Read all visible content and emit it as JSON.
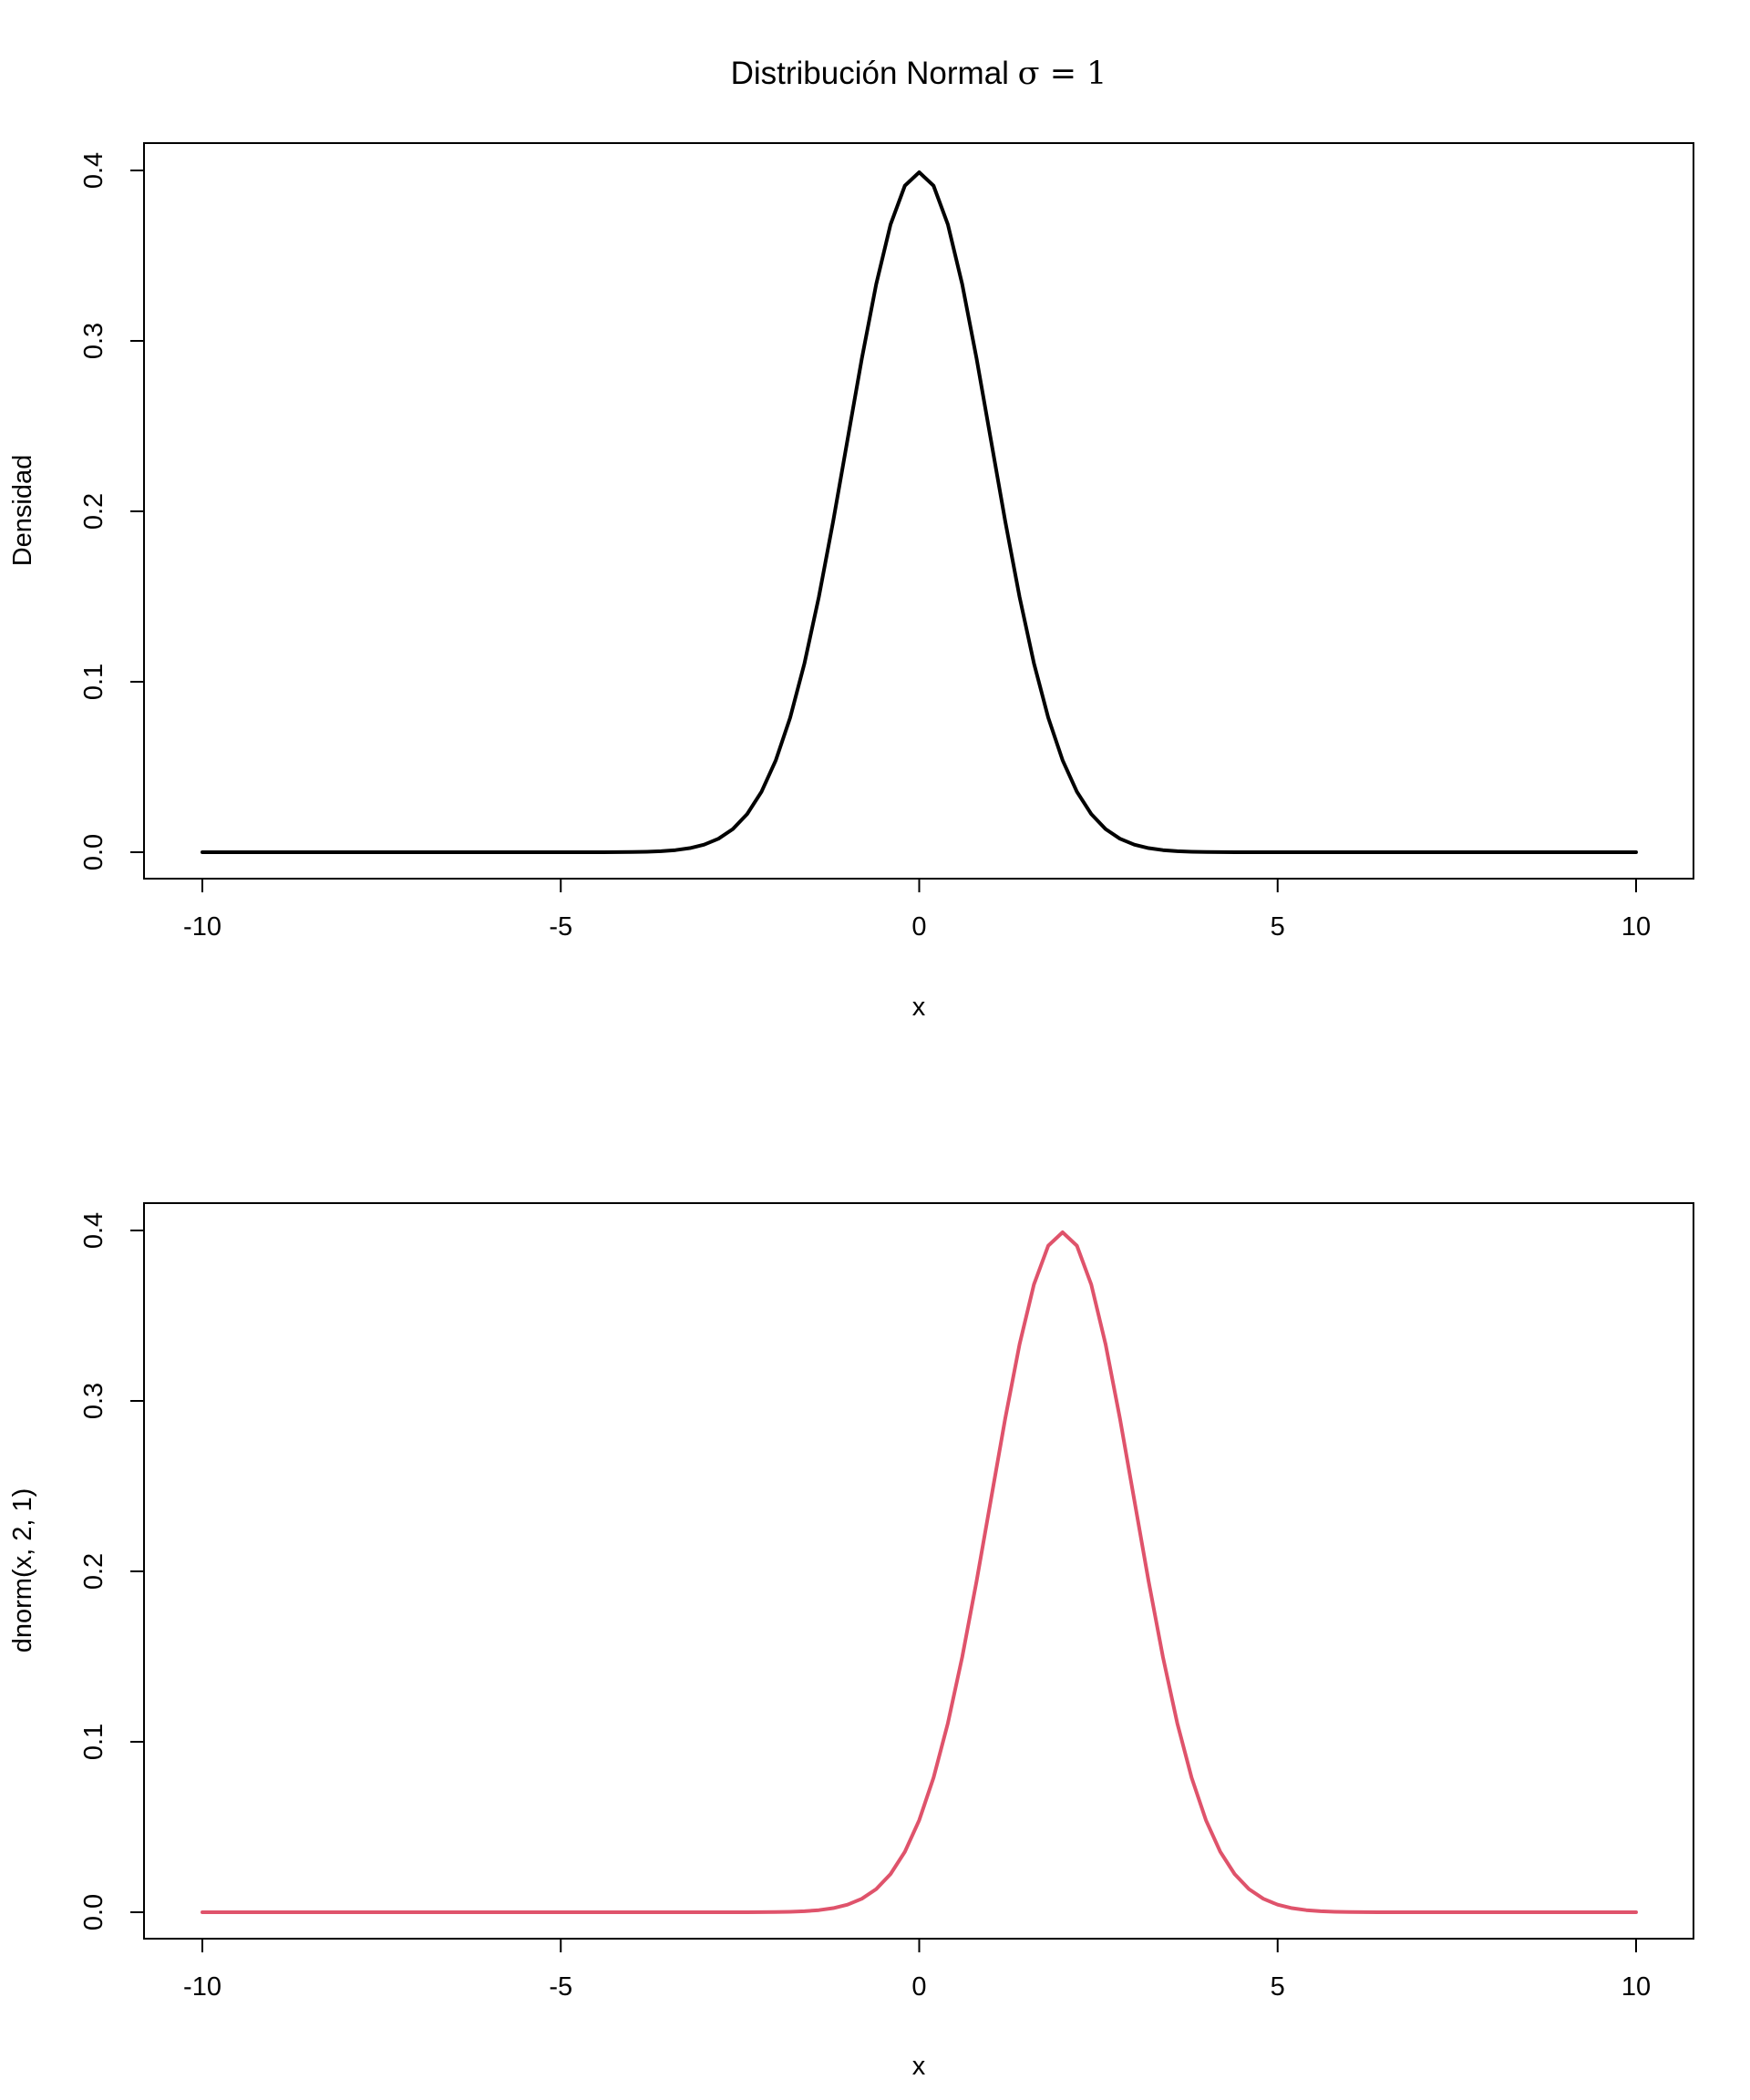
{
  "figure": {
    "title_text": "Distribución Normal ",
    "title_symbol": "σ = 1"
  },
  "chart_data": [
    {
      "type": "line",
      "title": "Distribución Normal σ = 1",
      "xlabel": "x",
      "ylabel": "Densidad",
      "xlim": [
        -10,
        10
      ],
      "ylim": [
        0,
        0.4
      ],
      "x_ticks": [
        -10,
        -5,
        0,
        5,
        10
      ],
      "y_ticks": [
        0.0,
        0.1,
        0.2,
        0.3,
        0.4
      ],
      "x_tick_labels": [
        "-10",
        "-5",
        "0",
        "5",
        "10"
      ],
      "y_tick_labels": [
        "0.0",
        "0.1",
        "0.2",
        "0.3",
        "0.4"
      ],
      "grid": false,
      "series": [
        {
          "function": "dnorm",
          "mean": 0,
          "sd": 1,
          "x_from": -10,
          "x_to": 10,
          "n_points": 101,
          "color": "#000000"
        }
      ]
    },
    {
      "type": "line",
      "title": "",
      "xlabel": "x",
      "ylabel": "dnorm(x, 2, 1)",
      "xlim": [
        -10,
        10
      ],
      "ylim": [
        0,
        0.4
      ],
      "x_ticks": [
        -10,
        -5,
        0,
        5,
        10
      ],
      "y_ticks": [
        0.0,
        0.1,
        0.2,
        0.3,
        0.4
      ],
      "x_tick_labels": [
        "-10",
        "-5",
        "0",
        "5",
        "10"
      ],
      "y_tick_labels": [
        "0.0",
        "0.1",
        "0.2",
        "0.3",
        "0.4"
      ],
      "grid": false,
      "series": [
        {
          "function": "dnorm",
          "mean": 2,
          "sd": 1,
          "x_from": -10,
          "x_to": 10,
          "n_points": 101,
          "color": "#DF536B"
        }
      ]
    }
  ]
}
